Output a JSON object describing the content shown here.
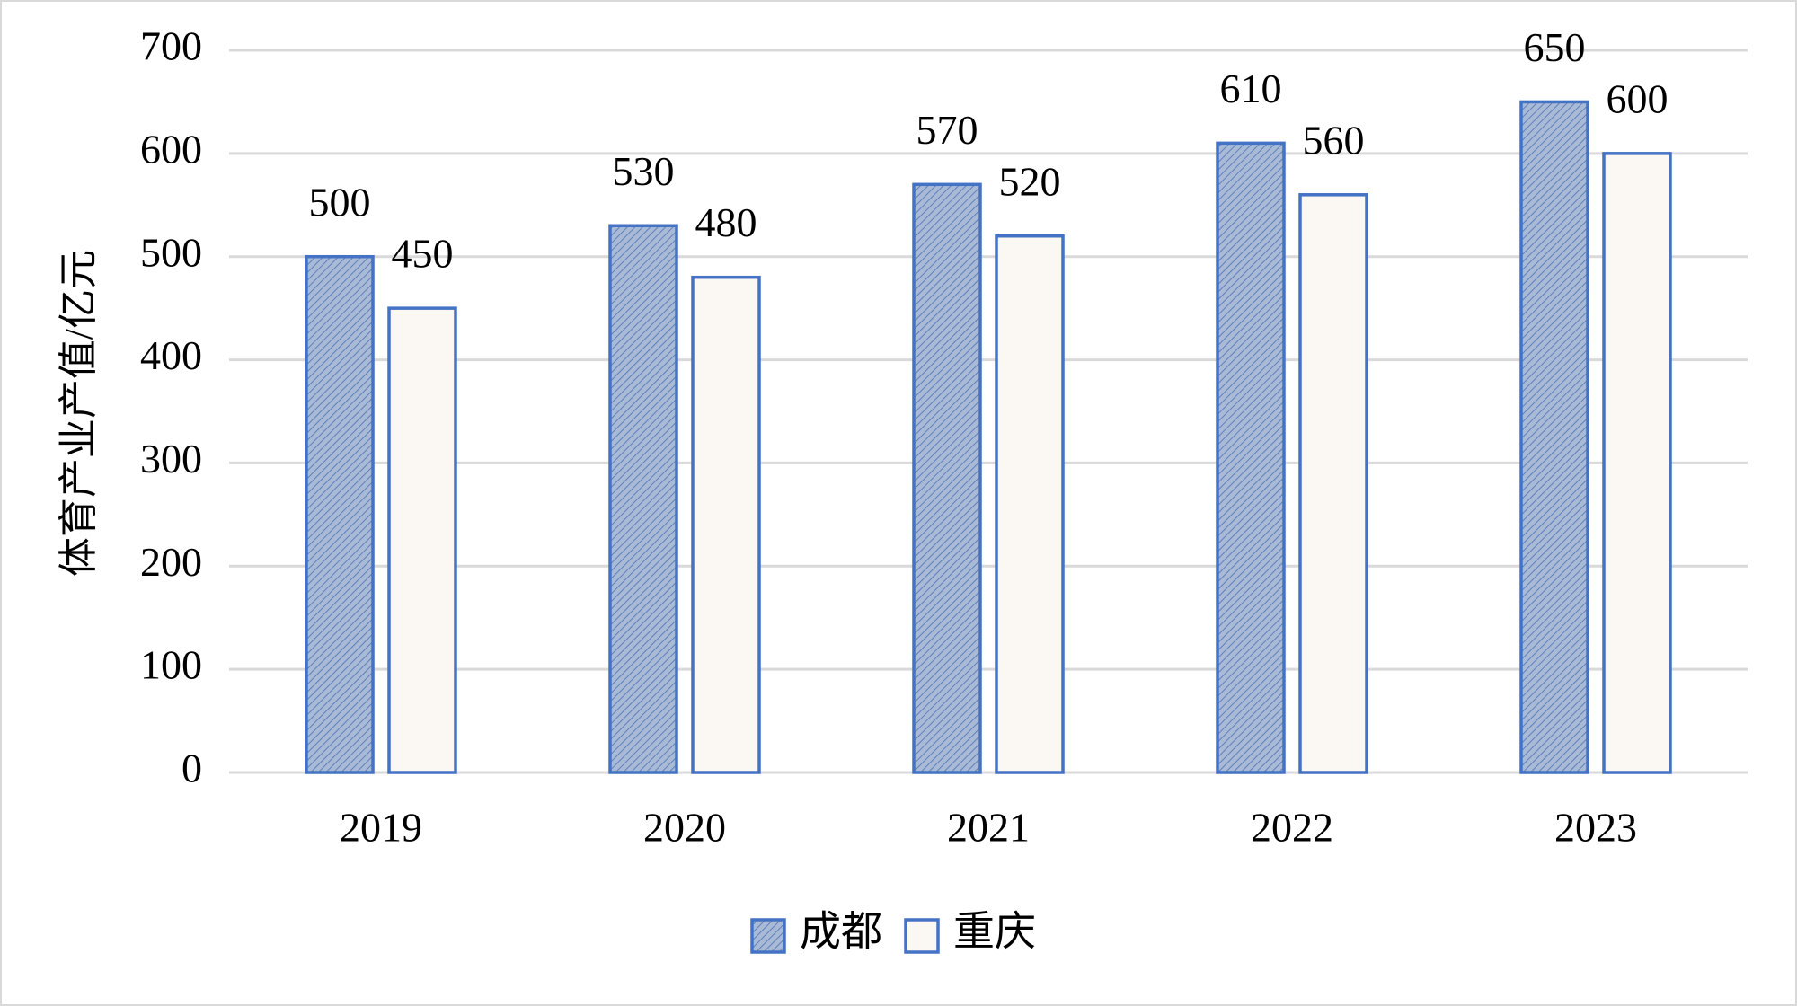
{
  "chart_data": {
    "type": "bar",
    "ylabel": "体育产业产值/亿元",
    "categories": [
      "2019",
      "2020",
      "2021",
      "2022",
      "2023"
    ],
    "series": [
      {
        "name": "成都",
        "color": "#a8bad6",
        "edgecolor": "#4472c4",
        "hatch": "////",
        "values": [
          500,
          530,
          570,
          610,
          650
        ]
      },
      {
        "name": "重庆",
        "color": "#fbf7f2",
        "edgecolor": "#4472c4",
        "values": [
          450,
          480,
          520,
          560,
          600
        ]
      }
    ],
    "ylim": [
      0,
      700
    ],
    "yticks": [
      0,
      100,
      200,
      300,
      400,
      500,
      600,
      700
    ],
    "grid": true,
    "legend": "bottom"
  }
}
